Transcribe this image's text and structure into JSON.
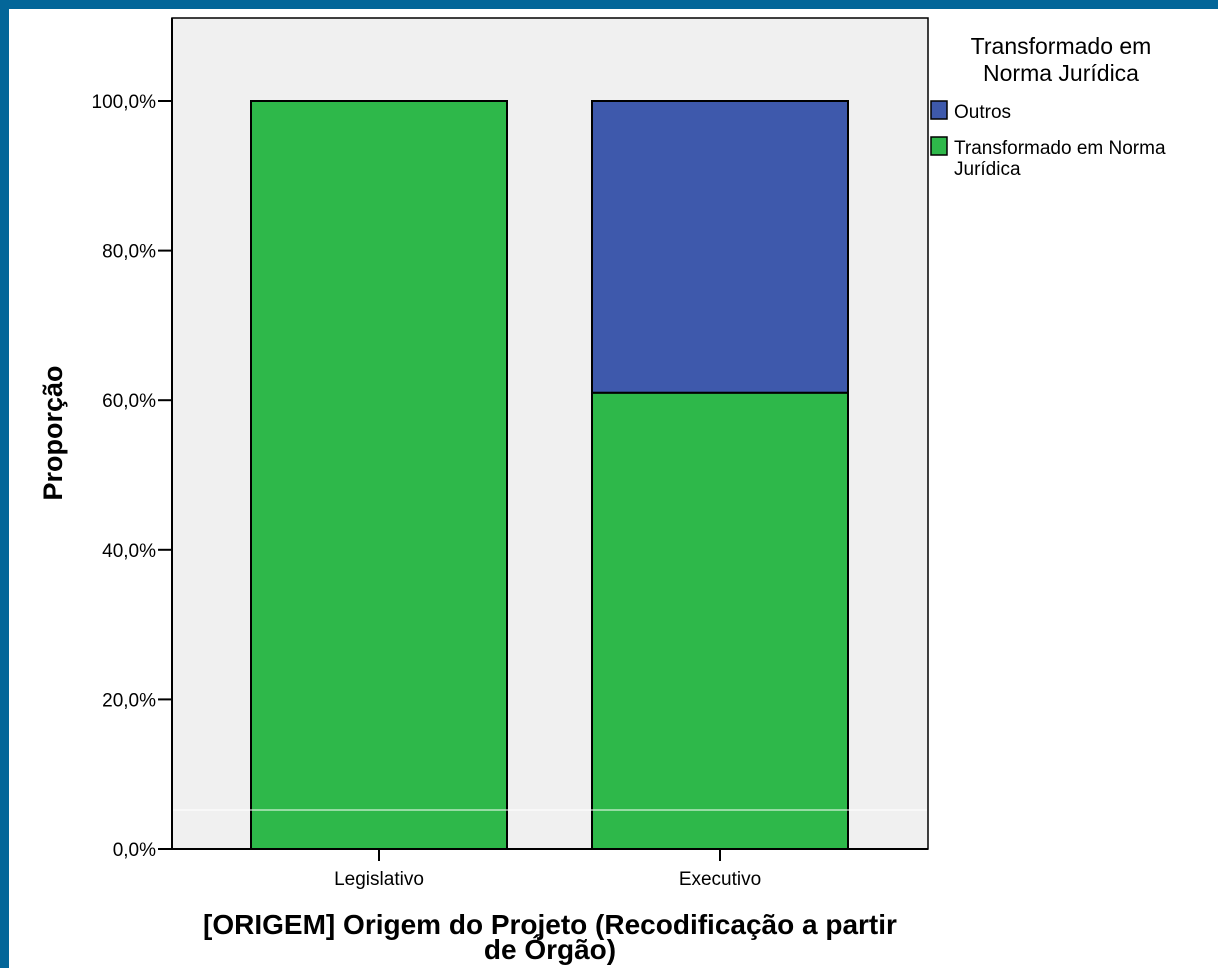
{
  "chart_data": {
    "type": "bar",
    "stacked": true,
    "categories": [
      "Legislativo",
      "Executivo"
    ],
    "series": [
      {
        "name": "Transformado em Norma Jurídica",
        "color": "#2eb84a",
        "values": [
          100.0,
          61.0
        ]
      },
      {
        "name": "Outros",
        "color": "#3e59ac",
        "values": [
          0.0,
          39.0
        ]
      }
    ],
    "ylim": [
      0,
      100
    ],
    "y_ticks": [
      {
        "value": 0,
        "label": "0,0%"
      },
      {
        "value": 20,
        "label": "20,0%"
      },
      {
        "value": 40,
        "label": "40,0%"
      },
      {
        "value": 60,
        "label": "60,0%"
      },
      {
        "value": 80,
        "label": "80,0%"
      },
      {
        "value": 100,
        "label": "100,0%"
      }
    ],
    "xlabel_lines": [
      "[ORIGEM] Origem do Projeto (Recodificação a partir",
      "de Órgão)"
    ],
    "ylabel": "Proporção",
    "legend": {
      "title_lines": [
        "Transformado em",
        "Norma Jurídica"
      ],
      "items": [
        {
          "label_lines": [
            "Outros"
          ],
          "color": "#3e59ac"
        },
        {
          "label_lines": [
            "Transformado em Norma",
            "Jurídica"
          ],
          "color": "#2eb84a"
        }
      ],
      "placement": "right"
    },
    "plot_background": "#f0f0f0",
    "grid": false
  },
  "frame_color": "#036699"
}
